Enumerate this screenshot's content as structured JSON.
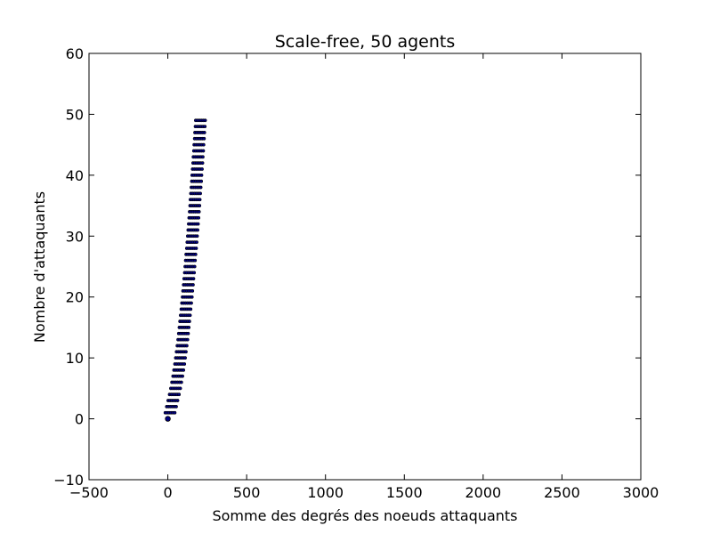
{
  "chart_data": {
    "type": "scatter",
    "title": "Scale-free, 50 agents",
    "xlabel": "Somme des degrés des noeuds attaquants",
    "ylabel": "Nombre d'attaquants",
    "xlim": [
      -500,
      3000
    ],
    "ylim": [
      -10,
      60
    ],
    "xticks": [
      "−500",
      "0",
      "500",
      "1000",
      "1500",
      "2000",
      "2500",
      "3000"
    ],
    "yticks": [
      "−10",
      "0",
      "10",
      "20",
      "30",
      "40",
      "50",
      "60"
    ],
    "grid": false,
    "marker_color": "#000080",
    "point_spread": 60,
    "center": {
      "y": [
        0,
        1,
        2,
        3,
        4,
        5,
        6,
        7,
        8,
        9,
        10,
        11,
        12,
        13,
        14,
        15,
        16,
        17,
        18,
        19,
        20,
        21,
        22,
        23,
        24,
        25,
        26,
        27,
        28,
        29,
        30,
        31,
        32,
        33,
        34,
        35,
        36,
        37,
        38,
        39,
        40,
        41,
        42,
        43,
        44,
        45,
        46,
        47,
        48,
        49
      ],
      "x": [
        0,
        14,
        23,
        32,
        41,
        49,
        56,
        63,
        69,
        75,
        80,
        85,
        90,
        95,
        99,
        103,
        107,
        111,
        115,
        119,
        123,
        126,
        130,
        133,
        137,
        140,
        143,
        146,
        150,
        153,
        156,
        159,
        162,
        165,
        168,
        171,
        173,
        176,
        179,
        182,
        184,
        187,
        190,
        192,
        195,
        197,
        200,
        202,
        205,
        207
      ]
    }
  }
}
